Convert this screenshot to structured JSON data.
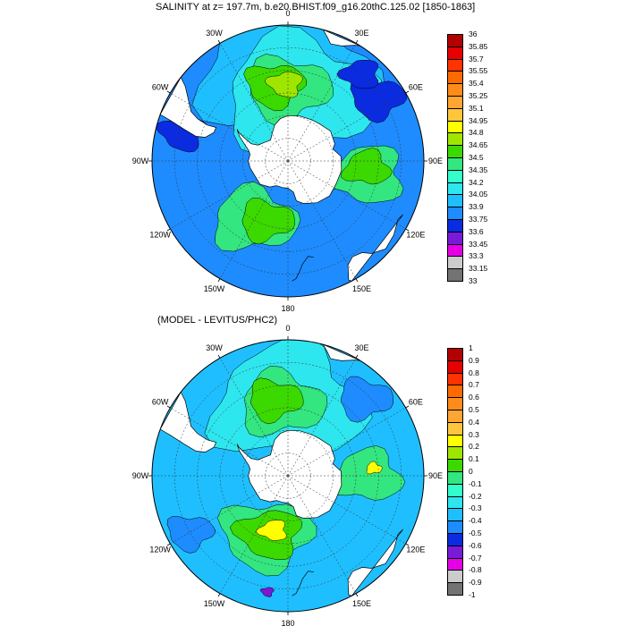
{
  "panels": [
    {
      "title": "SALINITY at z= 197.7m, b.e20.BHIST.f09_g16.20thC.125.02 [1850-1863]",
      "longitude_labels": [
        "0",
        "30E",
        "60E",
        "90E",
        "120E",
        "150E",
        "180",
        "150W",
        "120W",
        "90W",
        "60W",
        "30W"
      ],
      "colorbar": {
        "labels": [
          "36",
          "35.85",
          "35.7",
          "35.55",
          "35.4",
          "35.25",
          "35.1",
          "34.95",
          "34.8",
          "34.65",
          "34.5",
          "34.35",
          "34.2",
          "34.05",
          "33.9",
          "33.75",
          "33.6",
          "33.45",
          "33.3",
          "33.15",
          "33"
        ],
        "colors": [
          "#b30000",
          "#e60000",
          "#ff3300",
          "#ff6a00",
          "#ff8c1a",
          "#ffa533",
          "#ffc63d",
          "#ffff00",
          "#9ee600",
          "#3cd900",
          "#33e680",
          "#33ffcc",
          "#2ee6ee",
          "#1fbfff",
          "#1e8cff",
          "#0a2be0",
          "#7a1ad9",
          "#e600e6",
          "#cccccc",
          "#737373"
        ]
      },
      "field": {
        "background": "#1e8cff",
        "patches": [
          {
            "color": "#1fbfff",
            "lon": 0,
            "lat": -50,
            "r": 1.15
          },
          {
            "color": "#2ee6ee",
            "lon": 10,
            "lat": -60,
            "r": 1.0
          },
          {
            "color": "#33e680",
            "lon": 0,
            "lat": -58,
            "r": 0.55
          },
          {
            "color": "#3cd900",
            "lon": -10,
            "lat": -56,
            "r": 0.38
          },
          {
            "color": "#9ee600",
            "lon": -2,
            "lat": -56,
            "r": 0.22
          },
          {
            "color": "#33e680",
            "lon": 100,
            "lat": -55,
            "r": 0.5
          },
          {
            "color": "#3cd900",
            "lon": 95,
            "lat": -55,
            "r": 0.3
          },
          {
            "color": "#33e680",
            "lon": -150,
            "lat": -60,
            "r": 0.55
          },
          {
            "color": "#3cd900",
            "lon": -160,
            "lat": -62,
            "r": 0.35
          },
          {
            "color": "#0a2be0",
            "lon": 55,
            "lat": -42,
            "r": 0.35
          },
          {
            "color": "#0a2be0",
            "lon": -75,
            "lat": -42,
            "r": 0.3
          },
          {
            "color": "#0a2be0",
            "lon": 40,
            "lat": -40,
            "r": 0.25
          }
        ]
      }
    },
    {
      "title": "(MODEL - LEVITUS/PHC2)",
      "longitude_labels": [
        "0",
        "30E",
        "60E",
        "90E",
        "120E",
        "150E",
        "180",
        "150W",
        "120W",
        "90W",
        "60W",
        "30W"
      ],
      "colorbar": {
        "labels": [
          "1",
          "0.9",
          "0.8",
          "0.7",
          "0.6",
          "0.5",
          "0.4",
          "0.3",
          "0.2",
          "0.1",
          "0",
          "-0.1",
          "-0.2",
          "-0.3",
          "-0.4",
          "-0.5",
          "-0.6",
          "-0.7",
          "-0.8",
          "-0.9",
          "-1"
        ],
        "colors": [
          "#b30000",
          "#e60000",
          "#ff3300",
          "#ff6a00",
          "#ff8c1a",
          "#ffa533",
          "#ffc63d",
          "#ffff00",
          "#9ee600",
          "#3cd900",
          "#33e680",
          "#33ffcc",
          "#2ee6ee",
          "#1fbfff",
          "#1e8cff",
          "#0a2be0",
          "#7a1ad9",
          "#e600e6",
          "#cccccc",
          "#737373"
        ]
      },
      "field": {
        "background": "#1fbfff",
        "patches": [
          {
            "color": "#2ee6ee",
            "lon": 0,
            "lat": -58,
            "r": 1.0
          },
          {
            "color": "#33e680",
            "lon": -5,
            "lat": -58,
            "r": 0.55
          },
          {
            "color": "#3cd900",
            "lon": -10,
            "lat": -56,
            "r": 0.35
          },
          {
            "color": "#33e680",
            "lon": -160,
            "lat": -62,
            "r": 0.6
          },
          {
            "color": "#3cd900",
            "lon": -162,
            "lat": -63,
            "r": 0.42
          },
          {
            "color": "#ffff00",
            "lon": -165,
            "lat": -65,
            "r": 0.18
          },
          {
            "color": "#33e680",
            "lon": 90,
            "lat": -55,
            "r": 0.45
          },
          {
            "color": "#ffff00",
            "lon": 85,
            "lat": -52,
            "r": 0.1
          },
          {
            "color": "#1e8cff",
            "lon": 45,
            "lat": -42,
            "r": 0.35
          },
          {
            "color": "#1e8cff",
            "lon": -120,
            "lat": -40,
            "r": 0.3
          },
          {
            "color": "#7a1ad9",
            "lon": -170,
            "lat": -38,
            "r": 0.08
          }
        ]
      }
    }
  ]
}
